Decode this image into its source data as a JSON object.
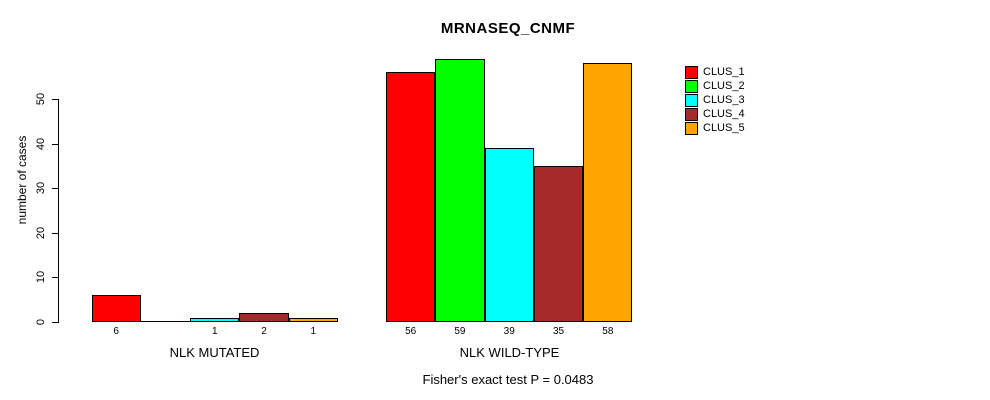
{
  "chart_data": {
    "type": "bar",
    "title": "MRNASEQ_CNMF",
    "xlabel": "",
    "ylabel": "number of cases",
    "ylim": [
      0,
      59
    ],
    "yticks": [
      0,
      10,
      20,
      30,
      40,
      50
    ],
    "grid": false,
    "legend_position": "right",
    "categories": [
      "NLK MUTATED",
      "NLK WILD-TYPE"
    ],
    "series": [
      {
        "name": "CLUS_1",
        "color": "#FF0000",
        "values": [
          6,
          56
        ]
      },
      {
        "name": "CLUS_2",
        "color": "#00FF00",
        "values": [
          0,
          59
        ]
      },
      {
        "name": "CLUS_3",
        "color": "#00FFFF",
        "values": [
          1,
          39
        ]
      },
      {
        "name": "CLUS_4",
        "color": "#A52A2A",
        "values": [
          2,
          35
        ]
      },
      {
        "name": "CLUS_5",
        "color": "#FFA500",
        "values": [
          1,
          58
        ]
      }
    ],
    "bar_value_labels": [
      [
        "6",
        "",
        "1",
        "2",
        "1"
      ],
      [
        "56",
        "59",
        "39",
        "35",
        "58"
      ]
    ],
    "annotation": "Fisher's exact test P = 0.0483"
  }
}
